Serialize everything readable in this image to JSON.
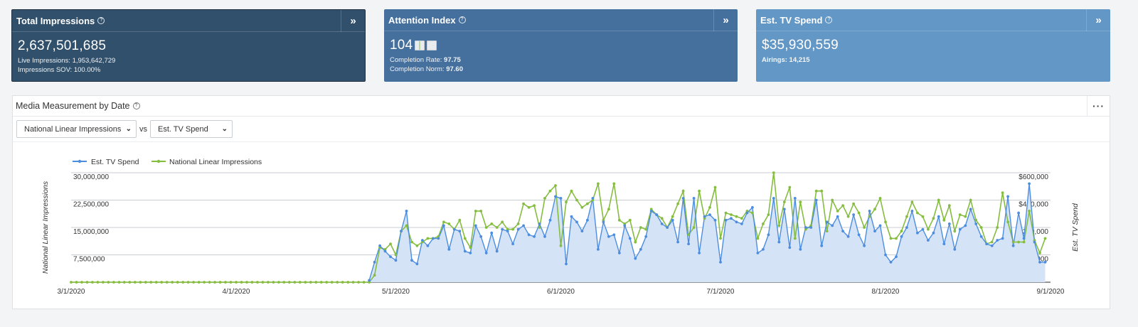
{
  "kpis": [
    {
      "title": "Total Impressions",
      "value": "2,637,501,685",
      "lines": [
        {
          "label": "Live Impressions:",
          "value": "1,953,642,729"
        },
        {
          "label": "Impressions SOV:",
          "value": "100.00%"
        }
      ]
    },
    {
      "title": "Attention Index",
      "value": "104",
      "lines": [
        {
          "label": "Completion Rate:",
          "value": "97.75"
        },
        {
          "label": "Completion Norm:",
          "value": "97.60"
        }
      ]
    },
    {
      "title": "Est. TV Spend",
      "value": "$35,930,559",
      "lines": [
        {
          "label": "Airings:",
          "value": "14,215"
        }
      ]
    }
  ],
  "colors": {
    "card1": "#30506c",
    "card2": "#456f9d",
    "card3": "#6397c5",
    "spend": "#4c8de0",
    "impressions": "#85bd3f",
    "area": "#d5e3f7"
  },
  "icons": {
    "help": "?",
    "expand": "»",
    "more": "···",
    "chevron": "⌄"
  },
  "panel": {
    "title": "Media Measurement by Date",
    "metric1": "National Linear Impressions",
    "vs": "vs",
    "metric2": "Est. TV Spend"
  },
  "chart_data": {
    "type": "line",
    "legend": [
      "Est. TV Spend",
      "National Linear Impressions"
    ],
    "legend_position": "top-left",
    "ylabel_left": "National Linear Impressions",
    "ylabel_right": "Est. TV Spend",
    "y_left_ticks": [
      "30,000,000",
      "22,500,000",
      "15,000,000",
      "7,500,000"
    ],
    "y_left_lim": [
      0,
      30000000
    ],
    "y_right_ticks": [
      "$600,000",
      "$450,000",
      "$300,000",
      "$150,000"
    ],
    "y_right_lim": [
      0,
      600000
    ],
    "x_ticks": [
      "3/1/2020",
      "4/1/2020",
      "5/1/2020",
      "6/1/2020",
      "7/1/2020",
      "8/1/2020",
      "9/1/2020"
    ],
    "x_start": "3/1/2020",
    "x_end": "9/1/2020",
    "grid": true,
    "series": [
      {
        "name": "Est. TV Spend",
        "axis": "right",
        "start": "4/26/2020",
        "values": [
          10000,
          110000,
          200000,
          170000,
          140000,
          120000,
          280000,
          390000,
          120000,
          100000,
          230000,
          200000,
          240000,
          240000,
          310000,
          180000,
          290000,
          280000,
          170000,
          160000,
          310000,
          250000,
          160000,
          270000,
          170000,
          290000,
          280000,
          210000,
          290000,
          310000,
          260000,
          250000,
          320000,
          250000,
          340000,
          470000,
          460000,
          100000,
          360000,
          330000,
          280000,
          340000,
          460000,
          180000,
          330000,
          250000,
          260000,
          160000,
          310000,
          240000,
          130000,
          180000,
          250000,
          390000,
          370000,
          320000,
          300000,
          340000,
          220000,
          460000,
          210000,
          460000,
          160000,
          360000,
          370000,
          340000,
          110000,
          340000,
          350000,
          330000,
          320000,
          380000,
          410000,
          160000,
          180000,
          260000,
          460000,
          220000,
          400000,
          190000,
          460000,
          180000,
          300000,
          300000,
          450000,
          200000,
          330000,
          310000,
          360000,
          280000,
          250000,
          370000,
          260000,
          200000,
          390000,
          280000,
          310000,
          150000,
          110000,
          140000,
          250000,
          300000,
          390000,
          270000,
          290000,
          230000,
          270000,
          360000,
          210000,
          320000,
          180000,
          290000,
          310000,
          400000,
          320000,
          250000,
          210000,
          200000,
          230000,
          240000,
          470000,
          200000,
          380000,
          240000,
          540000,
          220000,
          110000,
          110000
        ]
      },
      {
        "name": "National Linear Impressions",
        "axis": "left",
        "start": "4/26/2020",
        "values": [
          0,
          1900000,
          9500000,
          9000000,
          10500000,
          7500000,
          14000000,
          15500000,
          11000000,
          10000000,
          11000000,
          12000000,
          12000000,
          12500000,
          16500000,
          16000000,
          14500000,
          17000000,
          12000000,
          9500000,
          19500000,
          19500000,
          15000000,
          16000000,
          15000000,
          16500000,
          14500000,
          14500000,
          16000000,
          21500000,
          20500000,
          21000000,
          15000000,
          23000000,
          25000000,
          26500000,
          10000000,
          22000000,
          25000000,
          22500000,
          20500000,
          21500000,
          22500000,
          27000000,
          17000000,
          20000000,
          27000000,
          17000000,
          16000000,
          17000000,
          11000000,
          15000000,
          14500000,
          20000000,
          18500000,
          17500000,
          15000000,
          18000000,
          21500000,
          25000000,
          13000000,
          15000000,
          25000000,
          17500000,
          20500000,
          26000000,
          12000000,
          19000000,
          18500000,
          18000000,
          17500000,
          19500000,
          19000000,
          12000000,
          16000000,
          18500000,
          30000000,
          15500000,
          22000000,
          26000000,
          12000000,
          22000000,
          14500000,
          15500000,
          25000000,
          25000000,
          14000000,
          22500000,
          19500000,
          21000000,
          18000000,
          21500000,
          19000000,
          15000000,
          18000000,
          20000000,
          23000000,
          16500000,
          12000000,
          12000000,
          14000000,
          18000000,
          22000000,
          19000000,
          18000000,
          14500000,
          17500000,
          22500000,
          17000000,
          21000000,
          14000000,
          18500000,
          18000000,
          22500000,
          17000000,
          15000000,
          10500000,
          11000000,
          15000000,
          24500000,
          16500000,
          11000000,
          11000000,
          11000000,
          19500000,
          11500000,
          8000000,
          12000000
        ]
      }
    ]
  }
}
